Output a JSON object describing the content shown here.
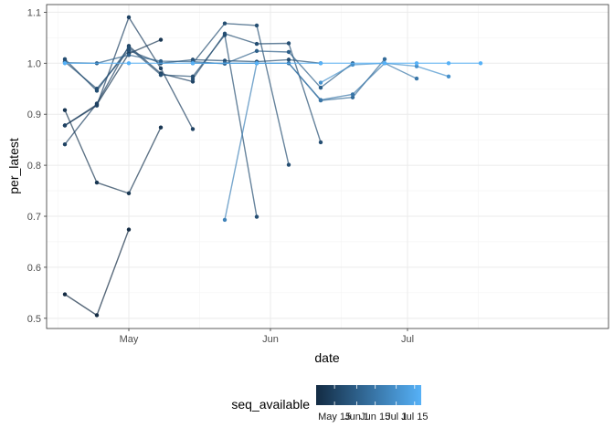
{
  "chart_data": {
    "type": "line",
    "xlabel": "date",
    "ylabel": "per_latest",
    "x_ticks": [
      "May",
      "Jun",
      "Jul"
    ],
    "x_tick_dates": [
      "2020-05-01",
      "2020-06-01",
      "2020-07-01"
    ],
    "xlim": [
      "2020-04-13",
      "2020-08-14"
    ],
    "y_ticks": [
      0.5,
      0.6,
      0.7,
      0.8,
      0.9,
      1.0,
      1.1
    ],
    "ylim": [
      0.48,
      1.115
    ],
    "grid": true,
    "legend": {
      "title": "seq_available",
      "position": "bottom",
      "labels": [
        "May 15",
        "Jun 1",
        "Jun 15",
        "Jul 1",
        "Jul 15"
      ],
      "label_dates": [
        "2020-05-15",
        "2020-06-01",
        "2020-06-15",
        "2020-07-01",
        "2020-07-15"
      ],
      "range": [
        "2020-05-01",
        "2020-07-20"
      ],
      "color_low": "#132B43",
      "color_high": "#56B1F7"
    },
    "series": [
      {
        "seq_available": "2020-05-01",
        "points": [
          [
            "2020-04-17",
            0.547
          ],
          [
            "2020-04-24",
            0.506
          ],
          [
            "2020-05-01",
            0.674
          ]
        ]
      },
      {
        "seq_available": "2020-05-08",
        "points": [
          [
            "2020-04-17",
            0.908
          ],
          [
            "2020-04-24",
            0.766
          ],
          [
            "2020-05-01",
            0.745
          ],
          [
            "2020-05-08",
            0.874
          ]
        ]
      },
      {
        "seq_available": "2020-05-08",
        "points": [
          [
            "2020-04-17",
            0.878
          ],
          [
            "2020-04-24",
            0.919
          ],
          [
            "2020-05-01",
            1.019
          ],
          [
            "2020-05-08",
            1.046
          ]
        ]
      },
      {
        "seq_available": "2020-05-15",
        "points": [
          [
            "2020-04-17",
            0.878
          ],
          [
            "2020-04-24",
            0.917
          ],
          [
            "2020-05-01",
            1.09
          ],
          [
            "2020-05-08",
            0.99
          ],
          [
            "2020-05-15",
            0.871
          ]
        ]
      },
      {
        "seq_available": "2020-05-15",
        "points": [
          [
            "2020-04-17",
            0.841
          ],
          [
            "2020-04-24",
            0.921
          ],
          [
            "2020-05-01",
            1.034
          ],
          [
            "2020-05-08",
            0.98
          ],
          [
            "2020-05-15",
            0.964
          ]
        ]
      },
      {
        "seq_available": "2020-05-22",
        "points": [
          [
            "2020-04-17",
            1.008
          ],
          [
            "2020-04-24",
            0.946
          ],
          [
            "2020-05-01",
            1.031
          ],
          [
            "2020-05-08",
            0.977
          ],
          [
            "2020-05-15",
            0.974
          ],
          [
            "2020-05-22",
            1.055
          ],
          [
            "2020-05-29",
            0.699
          ]
        ]
      },
      {
        "seq_available": "2020-05-22",
        "points": [
          [
            "2020-04-17",
            1.003
          ],
          [
            "2020-04-24",
            0.95
          ],
          [
            "2020-05-01",
            1.025
          ],
          [
            "2020-05-08",
            1.0
          ],
          [
            "2020-05-15",
            1.007
          ],
          [
            "2020-05-22",
            1.005
          ],
          [
            "2020-05-29",
            1.003
          ],
          [
            "2020-06-05",
            1.007
          ],
          [
            "2020-06-12",
            1.0
          ]
        ]
      },
      {
        "seq_available": "2020-05-22",
        "points": [
          [
            "2020-05-15",
            1.0
          ],
          [
            "2020-05-22",
            1.078
          ],
          [
            "2020-05-29",
            1.074
          ],
          [
            "2020-06-05",
            0.801
          ]
        ]
      },
      {
        "seq_available": "2020-05-22",
        "points": [
          [
            "2020-05-15",
            0.969
          ],
          [
            "2020-05-22",
            1.058
          ],
          [
            "2020-05-29",
            1.038
          ],
          [
            "2020-06-05",
            1.039
          ],
          [
            "2020-06-12",
            0.845
          ]
        ]
      },
      {
        "seq_available": "2020-06-01",
        "points": [
          [
            "2020-04-17",
            1.001
          ],
          [
            "2020-04-24",
            1.0
          ],
          [
            "2020-05-01",
            1.016
          ],
          [
            "2020-05-08",
            1.004
          ],
          [
            "2020-05-15",
            1.003
          ],
          [
            "2020-05-22",
            0.999
          ],
          [
            "2020-05-29",
            1.024
          ],
          [
            "2020-06-05",
            1.022
          ],
          [
            "2020-06-12",
            0.952
          ],
          [
            "2020-06-19",
            1.0
          ]
        ]
      },
      {
        "seq_available": "2020-06-08",
        "points": [
          [
            "2020-05-15",
            1.0
          ],
          [
            "2020-05-22",
            1.0
          ],
          [
            "2020-05-29",
            1.0
          ],
          [
            "2020-06-05",
            1.0
          ],
          [
            "2020-06-12",
            0.927
          ],
          [
            "2020-06-19",
            0.933
          ],
          [
            "2020-06-26",
            1.008
          ]
        ]
      },
      {
        "seq_available": "2020-06-15",
        "points": [
          [
            "2020-06-05",
            1.0
          ],
          [
            "2020-06-12",
            0.928
          ],
          [
            "2020-06-19",
            0.939
          ],
          [
            "2020-06-26",
            1.0
          ],
          [
            "2020-07-03",
            0.97
          ]
        ]
      },
      {
        "seq_available": "2020-06-22",
        "points": [
          [
            "2020-05-22",
            0.693
          ],
          [
            "2020-05-29",
            1.0
          ]
        ]
      },
      {
        "seq_available": "2020-07-01",
        "points": [
          [
            "2020-06-12",
            0.962
          ],
          [
            "2020-06-19",
            0.997
          ],
          [
            "2020-06-26",
            1.0
          ],
          [
            "2020-07-03",
            0.994
          ],
          [
            "2020-07-10",
            0.974
          ]
        ]
      },
      {
        "seq_available": "2020-07-20",
        "points": [
          [
            "2020-04-17",
            1.0
          ],
          [
            "2020-05-01",
            1.0
          ],
          [
            "2020-05-15",
            1.0
          ],
          [
            "2020-05-29",
            1.0
          ],
          [
            "2020-06-12",
            1.0
          ],
          [
            "2020-06-26",
            1.0
          ],
          [
            "2020-07-03",
            1.0
          ],
          [
            "2020-07-10",
            1.0
          ],
          [
            "2020-07-17",
            1.0
          ]
        ]
      }
    ]
  }
}
